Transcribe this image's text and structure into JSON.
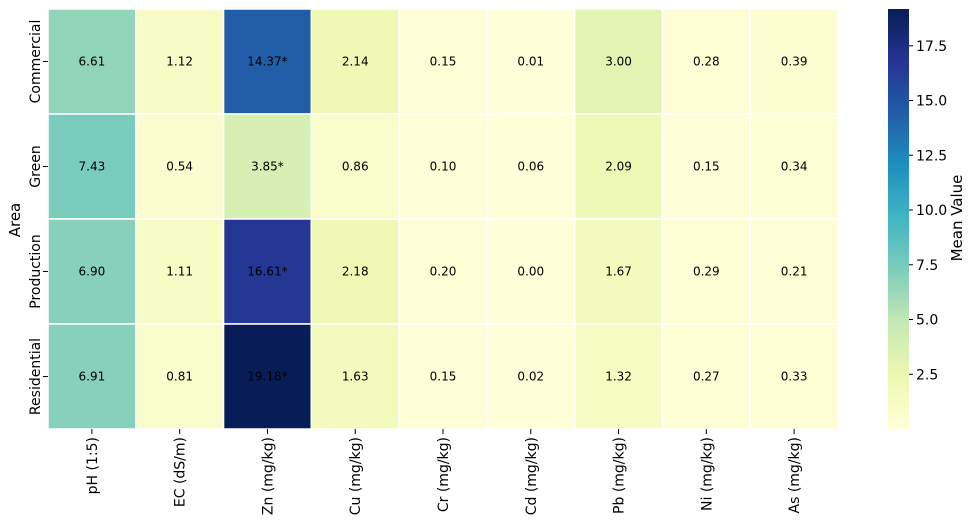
{
  "chart_data": {
    "type": "heatmap",
    "title": "",
    "xlabel": "",
    "ylabel": "Area",
    "rows": [
      "Commercial",
      "Green",
      "Production",
      "Residential"
    ],
    "columns": [
      "pH (1:5)",
      "EC (dS/m)",
      "Zn (mg/kg)",
      "Cu (mg/kg)",
      "Cr (mg/kg)",
      "Cd (mg/kg)",
      "Pb (mg/kg)",
      "Ni (mg/kg)",
      "As (mg/kg)"
    ],
    "values": [
      [
        6.61,
        1.12,
        14.37,
        2.14,
        0.15,
        0.01,
        3.0,
        0.28,
        0.39
      ],
      [
        7.43,
        0.54,
        3.85,
        0.86,
        0.1,
        0.06,
        2.09,
        0.15,
        0.34
      ],
      [
        6.9,
        1.11,
        16.61,
        2.18,
        0.2,
        0.0,
        1.67,
        0.29,
        0.21
      ],
      [
        6.91,
        0.81,
        19.18,
        1.63,
        0.15,
        0.02,
        1.32,
        0.27,
        0.33
      ]
    ],
    "annotations": [
      [
        "6.61",
        "1.12",
        "14.37*",
        "2.14",
        "0.15",
        "0.01",
        "3.00",
        "0.28",
        "0.39"
      ],
      [
        "7.43",
        "0.54",
        "3.85*",
        "0.86",
        "0.10",
        "0.06",
        "2.09",
        "0.15",
        "0.34"
      ],
      [
        "6.90",
        "1.11",
        "16.61*",
        "2.18",
        "0.20",
        "0.00",
        "1.67",
        "0.29",
        "0.21"
      ],
      [
        "6.91",
        "0.81",
        "19.18*",
        "1.63",
        "0.15",
        "0.02",
        "1.32",
        "0.27",
        "0.33"
      ]
    ],
    "colorbar": {
      "label": "Mean Value",
      "range": [
        0,
        19.18
      ],
      "ticks": [
        "2.5",
        "5.0",
        "7.5",
        "10.0",
        "12.5",
        "15.0",
        "17.5"
      ],
      "colormap": "YlGnBu",
      "colormap_stops": [
        "#ffffd9",
        "#edf8b1",
        "#c7e9b4",
        "#7fcdbb",
        "#41b6c4",
        "#1d91c0",
        "#225ea8",
        "#253494",
        "#081d58"
      ]
    },
    "grid": false
  }
}
